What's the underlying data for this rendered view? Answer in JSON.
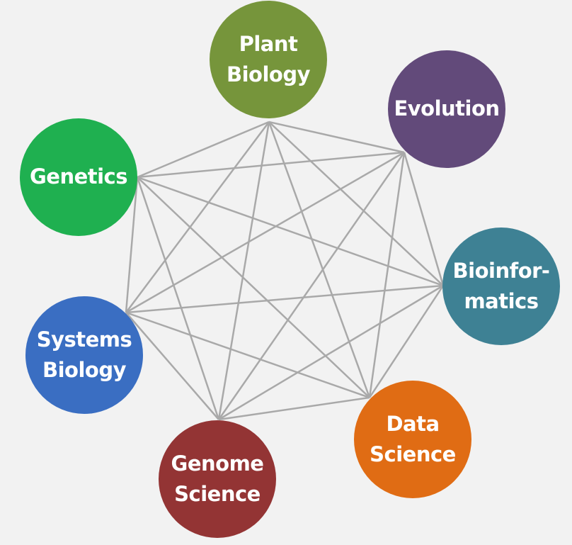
{
  "diagram": {
    "edge_color": "#a9a9a9",
    "nodes": [
      {
        "id": "plant-biology",
        "label": "Plant\nBiology",
        "color": "#76953b"
      },
      {
        "id": "evolution",
        "label": "Evolution",
        "color": "#624a7a"
      },
      {
        "id": "bioinformatics",
        "label": "Bioinfor-\nmatics",
        "color": "#3e8194"
      },
      {
        "id": "data-science",
        "label": "Data\nScience",
        "color": "#e06c14"
      },
      {
        "id": "genome-science",
        "label": "Genome\nScience",
        "color": "#933434"
      },
      {
        "id": "systems-biology",
        "label": "Systems\nBiology",
        "color": "#3a6ec2"
      },
      {
        "id": "genetics",
        "label": "Genetics",
        "color": "#1fb050"
      }
    ]
  }
}
